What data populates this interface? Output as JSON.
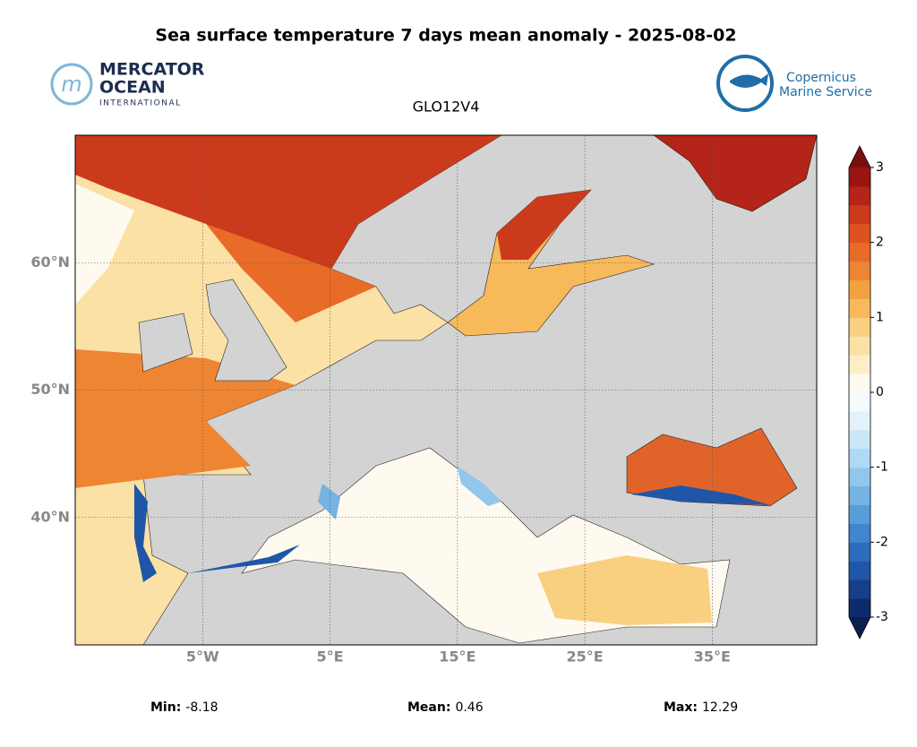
{
  "title": "Sea surface temperature 7 days mean anomaly - 2025-08-02",
  "logos": {
    "mercator": [
      "MERCATOR",
      "OCEAN",
      "INTERNATIONAL"
    ],
    "copernicus": [
      "Copernicus",
      "Marine Service"
    ]
  },
  "map": {
    "model": "GLO12V4",
    "xlim": [
      -15,
      43.2
    ],
    "ylim": [
      30,
      70
    ],
    "xticks": [
      {
        "value": -5,
        "label": "5°W"
      },
      {
        "value": 5,
        "label": "5°E"
      },
      {
        "value": 15,
        "label": "15°E"
      },
      {
        "value": 25,
        "label": "25°E"
      },
      {
        "value": 35,
        "label": "35°E"
      }
    ],
    "yticks": [
      {
        "value": 60,
        "label": "60°N"
      },
      {
        "value": 50,
        "label": "50°N"
      },
      {
        "value": 40,
        "label": "40°N"
      }
    ],
    "grid": true,
    "land_color": "#d3d3d3"
  },
  "colorbar": {
    "lim": [
      -3,
      3
    ],
    "ticks": [
      3,
      2,
      1,
      0,
      -1,
      -2,
      -3
    ],
    "colors": [
      "#0d2a6b",
      "#153f8a",
      "#1f56a8",
      "#2c6dbf",
      "#3f86cc",
      "#579dd8",
      "#74b3e2",
      "#92c7ec",
      "#b0d9f3",
      "#cbe6f7",
      "#e2f1fa",
      "#f5fafd",
      "#fffaf0",
      "#fdeec8",
      "#fbe1a6",
      "#f9cf80",
      "#f7b95a",
      "#f3a03e",
      "#ee8532",
      "#e86b28",
      "#dc5220",
      "#cc3a1c",
      "#b52418",
      "#9a1414"
    ],
    "extend_colors": [
      "#0b1f4f",
      "#7a0e0e"
    ]
  },
  "stats": [
    {
      "label": "Min:",
      "value": -8.18
    },
    {
      "label": "Mean:",
      "value": 0.46
    },
    {
      "label": "Max:",
      "value": 12.29
    }
  ]
}
